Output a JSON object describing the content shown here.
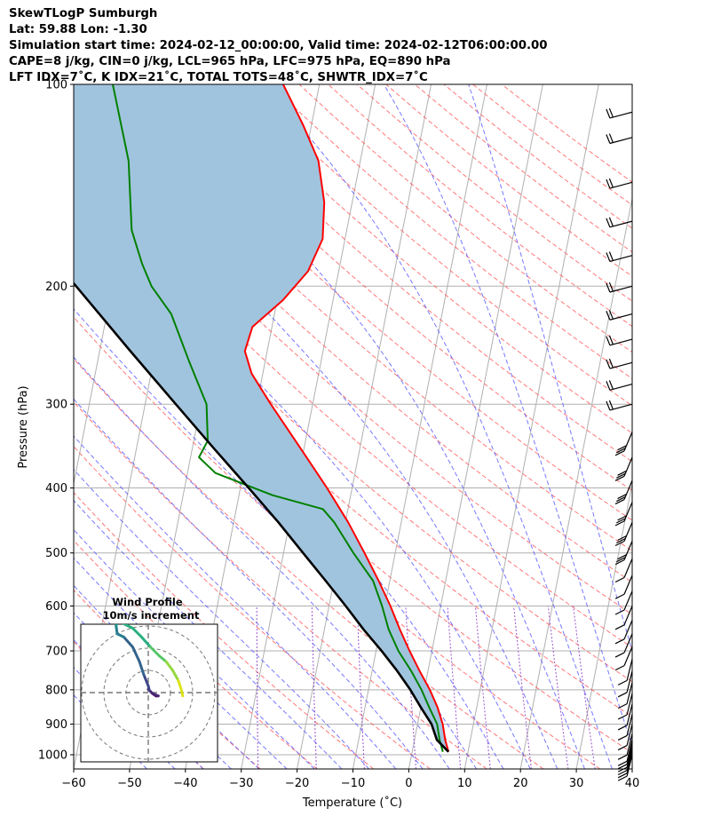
{
  "header": {
    "line1": "SkewTLogP Sumburgh",
    "line2": "Lat: 59.88   Lon: -1.30",
    "line3": "Simulation start time: 2024-02-12_00:00:00, Valid time: 2024-02-12T06:00:00.00",
    "line4": "CAPE=8 j/kg, CIN=0 j/kg, LCL=965 hPa, LFC=975 hPa, EQ=890 hPa",
    "line5": "LFT IDX=7˚C, K IDX=21˚C, TOTAL TOTS=48˚C, SHWTR_IDX=7˚C"
  },
  "chart_data": {
    "type": "line",
    "subtype": "skew-T log-P diagram",
    "xlabel": "Temperature (˚C)",
    "ylabel": "Pressure (hPa)",
    "xlim": [
      -60,
      40
    ],
    "ylim": [
      1050,
      100
    ],
    "y_scale": "log",
    "x_ticks": [
      -60,
      -50,
      -40,
      -30,
      -20,
      -10,
      0,
      10,
      20,
      30,
      40
    ],
    "y_ticks": [
      1000,
      900,
      800,
      700,
      600,
      500,
      400,
      300,
      200,
      100
    ],
    "grid": true,
    "colors": {
      "temperature": "#ff0000",
      "dewpoint": "#008000",
      "parcel": "#000000",
      "cape_fill": "#a1c4de",
      "dry_adiabats": "#ff5555",
      "moist_adiabats": "#5555ff",
      "mixing_ratio": "#9955cc",
      "isotherms": "#aaaaaa"
    },
    "series": [
      {
        "name": "temperature",
        "points": [
          {
            "p": 990,
            "t": 6.5
          },
          {
            "p": 950,
            "t": 5.5
          },
          {
            "p": 900,
            "t": 4.5
          },
          {
            "p": 850,
            "t": 3.0
          },
          {
            "p": 800,
            "t": 1.0
          },
          {
            "p": 750,
            "t": -1.5
          },
          {
            "p": 700,
            "t": -4.0
          },
          {
            "p": 650,
            "t": -6.5
          },
          {
            "p": 600,
            "t": -9.0
          },
          {
            "p": 550,
            "t": -12.0
          },
          {
            "p": 500,
            "t": -15.5
          },
          {
            "p": 450,
            "t": -19.5
          },
          {
            "p": 400,
            "t": -24.5
          },
          {
            "p": 350,
            "t": -30.5
          },
          {
            "p": 300,
            "t": -37.5
          },
          {
            "p": 270,
            "t": -42.0
          },
          {
            "p": 250,
            "t": -44.0
          },
          {
            "p": 230,
            "t": -43.5
          },
          {
            "p": 210,
            "t": -39.0
          },
          {
            "p": 190,
            "t": -35.5
          },
          {
            "p": 170,
            "t": -34.0
          },
          {
            "p": 150,
            "t": -35.0
          },
          {
            "p": 130,
            "t": -37.5
          },
          {
            "p": 115,
            "t": -41.5
          },
          {
            "p": 100,
            "t": -46.5
          }
        ]
      },
      {
        "name": "dewpoint",
        "points": [
          {
            "p": 990,
            "t": 5.5
          },
          {
            "p": 950,
            "t": 4.5
          },
          {
            "p": 900,
            "t": 3.5
          },
          {
            "p": 850,
            "t": 1.5
          },
          {
            "p": 800,
            "t": -0.5
          },
          {
            "p": 750,
            "t": -3.0
          },
          {
            "p": 700,
            "t": -6.0
          },
          {
            "p": 650,
            "t": -8.5
          },
          {
            "p": 600,
            "t": -10.5
          },
          {
            "p": 550,
            "t": -13.0
          },
          {
            "p": 500,
            "t": -17.5
          },
          {
            "p": 450,
            "t": -22.0
          },
          {
            "p": 430,
            "t": -24.5
          },
          {
            "p": 410,
            "t": -34.0
          },
          {
            "p": 380,
            "t": -45.0
          },
          {
            "p": 360,
            "t": -48.5
          },
          {
            "p": 340,
            "t": -47.5
          },
          {
            "p": 300,
            "t": -49.0
          },
          {
            "p": 260,
            "t": -53.5
          },
          {
            "p": 220,
            "t": -58.5
          },
          {
            "p": 200,
            "t": -63.0
          },
          {
            "p": 185,
            "t": -65.5
          },
          {
            "p": 165,
            "t": -68.5
          },
          {
            "p": 130,
            "t": -71.5
          },
          {
            "p": 100,
            "t": -77.0
          }
        ]
      },
      {
        "name": "parcel",
        "points": [
          {
            "p": 990,
            "t": 6.5
          },
          {
            "p": 950,
            "t": 4.0
          },
          {
            "p": 900,
            "t": 2.5
          },
          {
            "p": 850,
            "t": 0.0
          },
          {
            "p": 800,
            "t": -2.5
          },
          {
            "p": 750,
            "t": -5.5
          },
          {
            "p": 700,
            "t": -9.0
          },
          {
            "p": 650,
            "t": -13.0
          },
          {
            "p": 600,
            "t": -17.0
          },
          {
            "p": 550,
            "t": -21.5
          },
          {
            "p": 500,
            "t": -26.5
          },
          {
            "p": 450,
            "t": -32.0
          },
          {
            "p": 400,
            "t": -38.5
          },
          {
            "p": 350,
            "t": -46.0
          },
          {
            "p": 300,
            "t": -54.5
          },
          {
            "p": 250,
            "t": -64.5
          },
          {
            "p": 200,
            "t": -76.5
          },
          {
            "p": 150,
            "t": -92.5
          },
          {
            "p": 100,
            "t": -115.0
          }
        ]
      }
    ],
    "wind_barbs_levels_hPa": [
      1000,
      990,
      980,
      970,
      960,
      950,
      930,
      900,
      870,
      840,
      810,
      780,
      750,
      720,
      690,
      660,
      630,
      600,
      570,
      540,
      510,
      480,
      450,
      420,
      390,
      360,
      330,
      300,
      280,
      260,
      240,
      220,
      200,
      180,
      160,
      140,
      120,
      110
    ],
    "hodograph": {
      "title": "Wind Profile",
      "subtitle": "10m/s increment",
      "rings_ms": [
        10,
        20,
        30
      ],
      "points_uv": [
        [
          0.0,
          1.5
        ],
        [
          2.0,
          -0.5
        ],
        [
          3.5,
          -1.5
        ],
        [
          4.5,
          -1.5
        ],
        [
          2.0,
          -0.5
        ],
        [
          0.5,
          1.0
        ],
        [
          0.0,
          3.0
        ],
        [
          -2.0,
          8.0
        ],
        [
          -4.0,
          14.0
        ],
        [
          -7.0,
          20.5
        ],
        [
          -11.0,
          25.0
        ],
        [
          -14.0,
          26.5
        ],
        [
          -14.5,
          30.0
        ],
        [
          -13.5,
          32.5
        ],
        [
          -11.0,
          31.0
        ],
        [
          -7.0,
          29.0
        ],
        [
          -3.0,
          25.0
        ],
        [
          1.0,
          20.5
        ],
        [
          5.0,
          16.5
        ],
        [
          8.0,
          14.0
        ],
        [
          11.0,
          10.0
        ],
        [
          13.5,
          5.5
        ],
        [
          15.0,
          1.0
        ],
        [
          15.5,
          -1.5
        ]
      ]
    }
  }
}
